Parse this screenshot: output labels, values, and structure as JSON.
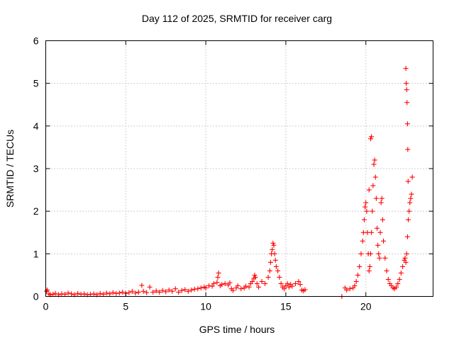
{
  "chart_data": {
    "type": "scatter",
    "title": "Day 112 of 2025, SRMTID for receiver carg",
    "xlabel": "GPS time / hours",
    "ylabel": "SRMTID / TECUs",
    "xlim": [
      0,
      24.2
    ],
    "ylim": [
      0,
      6
    ],
    "xticks": [
      "0",
      "5",
      "10",
      "15",
      "20"
    ],
    "yticks": [
      "0",
      "1",
      "2",
      "3",
      "4",
      "5",
      "6"
    ],
    "grid": true,
    "marker": "plus",
    "marker_color": "#ff0000",
    "series": [
      {
        "name": "SRMTID",
        "points": [
          [
            0.05,
            0.12
          ],
          [
            0.1,
            0.15
          ],
          [
            0.2,
            0.06
          ],
          [
            0.3,
            0.04
          ],
          [
            0.45,
            0.05
          ],
          [
            0.6,
            0.07
          ],
          [
            0.8,
            0.04
          ],
          [
            1.0,
            0.06
          ],
          [
            1.2,
            0.05
          ],
          [
            1.4,
            0.08
          ],
          [
            1.6,
            0.06
          ],
          [
            1.8,
            0.04
          ],
          [
            2.0,
            0.07
          ],
          [
            2.2,
            0.05
          ],
          [
            2.4,
            0.06
          ],
          [
            2.6,
            0.04
          ],
          [
            2.8,
            0.05
          ],
          [
            3.0,
            0.06
          ],
          [
            3.2,
            0.04
          ],
          [
            3.4,
            0.07
          ],
          [
            3.6,
            0.05
          ],
          [
            3.8,
            0.08
          ],
          [
            4.0,
            0.06
          ],
          [
            4.2,
            0.09
          ],
          [
            4.4,
            0.07
          ],
          [
            4.6,
            0.08
          ],
          [
            4.8,
            0.1
          ],
          [
            5.0,
            0.07
          ],
          [
            5.2,
            0.09
          ],
          [
            5.4,
            0.12
          ],
          [
            5.6,
            0.08
          ],
          [
            5.8,
            0.1
          ],
          [
            6.0,
            0.26
          ],
          [
            6.1,
            0.12
          ],
          [
            6.3,
            0.09
          ],
          [
            6.5,
            0.22
          ],
          [
            6.7,
            0.1
          ],
          [
            6.9,
            0.13
          ],
          [
            7.1,
            0.1
          ],
          [
            7.3,
            0.14
          ],
          [
            7.5,
            0.11
          ],
          [
            7.7,
            0.15
          ],
          [
            7.9,
            0.12
          ],
          [
            8.1,
            0.18
          ],
          [
            8.3,
            0.1
          ],
          [
            8.5,
            0.14
          ],
          [
            8.7,
            0.16
          ],
          [
            8.9,
            0.12
          ],
          [
            9.1,
            0.15
          ],
          [
            9.3,
            0.17
          ],
          [
            9.5,
            0.18
          ],
          [
            9.7,
            0.2
          ],
          [
            9.9,
            0.22
          ],
          [
            10.0,
            0.2
          ],
          [
            10.2,
            0.25
          ],
          [
            10.4,
            0.24
          ],
          [
            10.5,
            0.3
          ],
          [
            10.7,
            0.33
          ],
          [
            10.75,
            0.45
          ],
          [
            10.8,
            0.55
          ],
          [
            10.9,
            0.25
          ],
          [
            11.0,
            0.28
          ],
          [
            11.2,
            0.3
          ],
          [
            11.4,
            0.27
          ],
          [
            11.5,
            0.32
          ],
          [
            11.6,
            0.18
          ],
          [
            11.7,
            0.14
          ],
          [
            11.9,
            0.2
          ],
          [
            12.0,
            0.25
          ],
          [
            12.2,
            0.18
          ],
          [
            12.4,
            0.2
          ],
          [
            12.5,
            0.24
          ],
          [
            12.7,
            0.22
          ],
          [
            12.8,
            0.3
          ],
          [
            12.9,
            0.35
          ],
          [
            13.0,
            0.42
          ],
          [
            13.05,
            0.5
          ],
          [
            13.1,
            0.45
          ],
          [
            13.2,
            0.3
          ],
          [
            13.3,
            0.22
          ],
          [
            13.5,
            0.35
          ],
          [
            13.7,
            0.3
          ],
          [
            13.9,
            0.45
          ],
          [
            14.0,
            0.6
          ],
          [
            14.05,
            0.8
          ],
          [
            14.1,
            1.0
          ],
          [
            14.15,
            1.1
          ],
          [
            14.2,
            1.25
          ],
          [
            14.25,
            1.2
          ],
          [
            14.3,
            1.0
          ],
          [
            14.35,
            0.85
          ],
          [
            14.4,
            0.7
          ],
          [
            14.5,
            0.6
          ],
          [
            14.6,
            0.45
          ],
          [
            14.7,
            0.3
          ],
          [
            14.8,
            0.22
          ],
          [
            14.9,
            0.18
          ],
          [
            15.0,
            0.25
          ],
          [
            15.1,
            0.3
          ],
          [
            15.2,
            0.22
          ],
          [
            15.3,
            0.28
          ],
          [
            15.4,
            0.24
          ],
          [
            15.6,
            0.3
          ],
          [
            15.8,
            0.35
          ],
          [
            15.9,
            0.28
          ],
          [
            16.0,
            0.15
          ],
          [
            16.1,
            0.13
          ],
          [
            16.2,
            0.16
          ],
          [
            18.5,
            0.0
          ],
          [
            18.7,
            0.2
          ],
          [
            18.8,
            0.15
          ],
          [
            19.0,
            0.18
          ],
          [
            19.2,
            0.2
          ],
          [
            19.3,
            0.25
          ],
          [
            19.4,
            0.35
          ],
          [
            19.5,
            0.5
          ],
          [
            19.6,
            0.7
          ],
          [
            19.7,
            1.0
          ],
          [
            19.8,
            1.3
          ],
          [
            19.85,
            1.5
          ],
          [
            19.9,
            1.8
          ],
          [
            19.95,
            2.1
          ],
          [
            20.0,
            2.2
          ],
          [
            20.05,
            2.0
          ],
          [
            20.1,
            1.5
          ],
          [
            20.15,
            1.0
          ],
          [
            20.2,
            0.6
          ],
          [
            20.25,
            0.7
          ],
          [
            20.3,
            1.0
          ],
          [
            20.35,
            1.5
          ],
          [
            20.4,
            2.0
          ],
          [
            20.45,
            2.6
          ],
          [
            20.5,
            3.1
          ],
          [
            20.55,
            3.2
          ],
          [
            20.6,
            2.8
          ],
          [
            20.65,
            2.3
          ],
          [
            20.7,
            1.6
          ],
          [
            20.75,
            1.2
          ],
          [
            20.8,
            1.0
          ],
          [
            20.85,
            0.9
          ],
          [
            20.9,
            1.5
          ],
          [
            20.95,
            2.2
          ],
          [
            21.0,
            2.3
          ],
          [
            21.05,
            1.8
          ],
          [
            21.1,
            1.3
          ],
          [
            21.2,
            0.9
          ],
          [
            21.3,
            0.6
          ],
          [
            21.4,
            0.4
          ],
          [
            21.5,
            0.3
          ],
          [
            21.6,
            0.25
          ],
          [
            21.7,
            0.2
          ],
          [
            21.8,
            0.18
          ],
          [
            21.9,
            0.22
          ],
          [
            22.0,
            0.3
          ],
          [
            22.1,
            0.4
          ],
          [
            22.2,
            0.55
          ],
          [
            22.3,
            0.7
          ],
          [
            22.4,
            0.85
          ],
          [
            22.45,
            0.9
          ],
          [
            22.5,
            0.8
          ],
          [
            22.55,
            1.0
          ],
          [
            22.6,
            1.4
          ],
          [
            22.65,
            1.8
          ],
          [
            22.7,
            2.0
          ],
          [
            22.75,
            2.2
          ],
          [
            22.8,
            2.3
          ],
          [
            22.85,
            2.4
          ],
          [
            22.9,
            2.8
          ],
          [
            22.5,
            5.35
          ],
          [
            22.52,
            5.0
          ],
          [
            22.55,
            4.85
          ],
          [
            22.57,
            4.55
          ],
          [
            22.6,
            4.05
          ],
          [
            22.62,
            3.45
          ],
          [
            22.64,
            2.7
          ],
          [
            20.3,
            3.7
          ],
          [
            20.35,
            3.75
          ],
          [
            20.2,
            2.5
          ]
        ]
      }
    ]
  }
}
